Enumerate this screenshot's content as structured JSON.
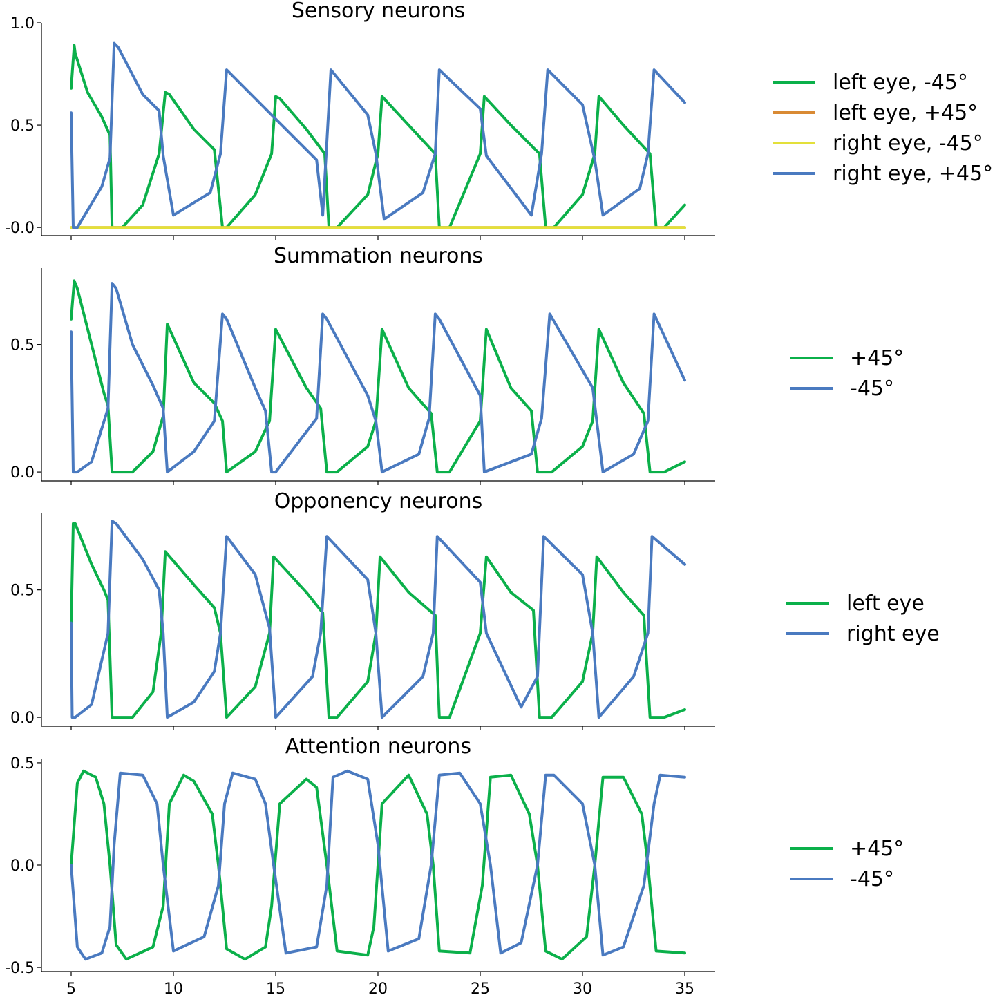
{
  "colors": {
    "green": "#0bb04a",
    "orange": "#d98a34",
    "yellow": "#e3e03a",
    "blue": "#4a7ac0"
  },
  "chart_data": [
    {
      "type": "line",
      "title": "Sensory neurons",
      "xlim": [
        5,
        35
      ],
      "ylim": [
        -0.04,
        1.0
      ],
      "yticks": [
        1.0,
        0.5,
        -0.0
      ],
      "ytick_labels": [
        "1.0",
        "0.5",
        "-0.0"
      ],
      "xticks": [
        5,
        10,
        15,
        20,
        25,
        30,
        35
      ],
      "xtick_labels": [],
      "legend": "right",
      "series": [
        {
          "name": "left eye, -45°",
          "color": "#0bb04a",
          "x": [
            5.0,
            5.15,
            5.2,
            5.8,
            6.5,
            6.9,
            7.0,
            7.5,
            8.5,
            9.3,
            9.6,
            9.8,
            11.0,
            12.0,
            12.4,
            12.6,
            14.0,
            14.8,
            15.0,
            15.2,
            16.5,
            17.4,
            17.6,
            18.0,
            19.5,
            20.0,
            20.2,
            21.5,
            22.8,
            23.0,
            23.5,
            25.0,
            25.2,
            26.5,
            27.9,
            28.2,
            28.6,
            30.0,
            30.6,
            30.8,
            32.0,
            33.3,
            33.6,
            34.0,
            35.0
          ],
          "y": [
            0.68,
            0.89,
            0.85,
            0.66,
            0.54,
            0.45,
            0.0,
            0.0,
            0.11,
            0.36,
            0.66,
            0.65,
            0.48,
            0.38,
            0.0,
            0.0,
            0.16,
            0.36,
            0.64,
            0.63,
            0.48,
            0.36,
            0.0,
            0.0,
            0.16,
            0.36,
            0.64,
            0.5,
            0.36,
            0.0,
            0.0,
            0.36,
            0.64,
            0.5,
            0.36,
            0.0,
            0.0,
            0.16,
            0.36,
            0.64,
            0.5,
            0.36,
            0.0,
            0.0,
            0.11
          ]
        },
        {
          "name": "left eye, +45°",
          "color": "#d98a34",
          "x": [
            5,
            35
          ],
          "y": [
            0.0,
            0.0
          ]
        },
        {
          "name": "right eye, -45°",
          "color": "#e3e03a",
          "x": [
            5,
            35
          ],
          "y": [
            0.0,
            0.0
          ]
        },
        {
          "name": "right eye, +45°",
          "color": "#4a7ac0",
          "x": [
            5.0,
            5.1,
            5.3,
            6.5,
            6.9,
            7.1,
            7.3,
            8.5,
            9.3,
            9.5,
            10.0,
            11.8,
            12.3,
            12.6,
            14.5,
            17.0,
            17.3,
            17.7,
            19.5,
            19.9,
            20.3,
            22.2,
            22.8,
            23.0,
            25.0,
            25.3,
            27.5,
            28.0,
            28.3,
            30.0,
            30.6,
            31.0,
            32.8,
            33.2,
            33.5,
            35.0
          ],
          "y": [
            0.56,
            0.0,
            0.0,
            0.2,
            0.34,
            0.9,
            0.88,
            0.65,
            0.57,
            0.35,
            0.06,
            0.17,
            0.36,
            0.77,
            0.58,
            0.33,
            0.06,
            0.77,
            0.55,
            0.36,
            0.04,
            0.17,
            0.36,
            0.77,
            0.58,
            0.35,
            0.06,
            0.36,
            0.77,
            0.6,
            0.33,
            0.06,
            0.19,
            0.36,
            0.77,
            0.61
          ]
        }
      ]
    },
    {
      "type": "line",
      "title": "Summation neurons",
      "xlim": [
        5,
        35
      ],
      "ylim": [
        -0.035,
        0.8
      ],
      "yticks": [
        0.5,
        0.0
      ],
      "ytick_labels": [
        "0.5",
        "0.0"
      ],
      "xticks": [
        5,
        10,
        15,
        20,
        25,
        30,
        35
      ],
      "xtick_labels": [],
      "legend": "right",
      "series": [
        {
          "name": "+45°",
          "color": "#0bb04a",
          "x": [
            5.0,
            5.15,
            5.3,
            6.0,
            6.6,
            6.8,
            7.0,
            8.0,
            9.0,
            9.5,
            9.7,
            11.0,
            12.0,
            12.4,
            12.6,
            14.0,
            14.7,
            15.0,
            16.5,
            17.2,
            17.5,
            18.0,
            19.5,
            19.9,
            20.2,
            21.5,
            22.6,
            22.9,
            23.5,
            25.0,
            25.3,
            26.5,
            27.5,
            27.8,
            28.5,
            30.0,
            30.5,
            30.8,
            32.0,
            33.0,
            33.3,
            34.0,
            35.0
          ],
          "y": [
            0.6,
            0.75,
            0.72,
            0.5,
            0.31,
            0.26,
            0.0,
            0.0,
            0.08,
            0.22,
            0.58,
            0.35,
            0.27,
            0.2,
            0.0,
            0.08,
            0.2,
            0.56,
            0.33,
            0.25,
            0.0,
            0.0,
            0.1,
            0.2,
            0.56,
            0.33,
            0.23,
            0.0,
            0.0,
            0.2,
            0.56,
            0.33,
            0.24,
            0.0,
            0.0,
            0.1,
            0.2,
            0.56,
            0.35,
            0.23,
            0.0,
            0.0,
            0.04
          ]
        },
        {
          "name": "-45°",
          "color": "#4a7ac0",
          "x": [
            5.0,
            5.1,
            5.3,
            6.0,
            6.8,
            7.0,
            7.2,
            8.0,
            9.0,
            9.5,
            9.7,
            11.0,
            12.0,
            12.4,
            12.6,
            14.0,
            14.5,
            14.8,
            15.0,
            17.0,
            17.3,
            17.5,
            19.5,
            19.9,
            20.2,
            22.0,
            22.5,
            22.8,
            23.0,
            25.0,
            25.2,
            27.5,
            28.0,
            28.4,
            30.5,
            31.0,
            32.5,
            33.2,
            33.5,
            35.0
          ],
          "y": [
            0.55,
            0.0,
            0.0,
            0.04,
            0.25,
            0.74,
            0.72,
            0.5,
            0.34,
            0.25,
            0.0,
            0.08,
            0.2,
            0.62,
            0.6,
            0.33,
            0.24,
            0.0,
            0.0,
            0.21,
            0.62,
            0.6,
            0.3,
            0.2,
            0.0,
            0.07,
            0.21,
            0.62,
            0.6,
            0.3,
            0.0,
            0.07,
            0.21,
            0.62,
            0.33,
            0.0,
            0.07,
            0.2,
            0.62,
            0.36
          ]
        }
      ]
    },
    {
      "type": "line",
      "title": "Opponency neurons",
      "xlim": [
        5,
        35
      ],
      "ylim": [
        -0.035,
        0.8
      ],
      "yticks": [
        0.5,
        0.0
      ],
      "ytick_labels": [
        "0.5",
        "0.0"
      ],
      "xticks": [
        5,
        10,
        15,
        20,
        25,
        30,
        35
      ],
      "xtick_labels": [],
      "legend": "right",
      "series": [
        {
          "name": "left eye",
          "color": "#0bb04a",
          "x": [
            5.0,
            5.1,
            5.2,
            6.0,
            6.6,
            6.8,
            7.0,
            8.0,
            9.0,
            9.4,
            9.6,
            11.0,
            12.0,
            12.3,
            12.6,
            14.0,
            14.7,
            14.9,
            16.5,
            17.3,
            17.6,
            18.0,
            19.5,
            19.9,
            20.1,
            21.5,
            22.8,
            23.0,
            23.5,
            25.0,
            25.3,
            26.5,
            27.6,
            27.9,
            28.5,
            30.0,
            30.5,
            30.7,
            32.0,
            33.0,
            33.3,
            34.0,
            35.0
          ],
          "y": [
            0.36,
            0.76,
            0.76,
            0.6,
            0.5,
            0.46,
            0.0,
            0.0,
            0.1,
            0.33,
            0.65,
            0.52,
            0.43,
            0.33,
            0.0,
            0.12,
            0.33,
            0.63,
            0.49,
            0.41,
            0.0,
            0.0,
            0.14,
            0.33,
            0.63,
            0.49,
            0.4,
            0.0,
            0.0,
            0.33,
            0.63,
            0.49,
            0.42,
            0.0,
            0.0,
            0.14,
            0.33,
            0.63,
            0.49,
            0.4,
            0.0,
            0.0,
            0.03
          ]
        },
        {
          "name": "right eye",
          "color": "#4a7ac0",
          "x": [
            5.0,
            5.05,
            5.2,
            6.0,
            6.8,
            7.0,
            7.2,
            8.5,
            9.3,
            9.5,
            9.7,
            11.0,
            12.0,
            12.3,
            12.6,
            14.0,
            14.7,
            15.0,
            16.8,
            17.2,
            17.5,
            19.5,
            19.9,
            20.2,
            22.2,
            22.7,
            22.9,
            25.0,
            25.3,
            27.0,
            27.8,
            28.1,
            30.0,
            30.5,
            30.8,
            32.5,
            33.2,
            33.4,
            35.0
          ],
          "y": [
            0.37,
            0.0,
            0.0,
            0.05,
            0.33,
            0.77,
            0.76,
            0.62,
            0.5,
            0.33,
            0.0,
            0.06,
            0.18,
            0.33,
            0.71,
            0.56,
            0.35,
            0.0,
            0.16,
            0.33,
            0.71,
            0.54,
            0.33,
            0.0,
            0.16,
            0.33,
            0.71,
            0.53,
            0.33,
            0.04,
            0.16,
            0.71,
            0.56,
            0.33,
            0.0,
            0.16,
            0.33,
            0.71,
            0.6
          ]
        }
      ]
    },
    {
      "type": "line",
      "title": "Attention neurons",
      "xlim": [
        5,
        35
      ],
      "ylim": [
        -0.52,
        0.52
      ],
      "yticks": [
        0.5,
        0.0,
        -0.5
      ],
      "ytick_labels": [
        "0.5",
        "0.0",
        "-0.5"
      ],
      "xticks": [
        5,
        10,
        15,
        20,
        25,
        30,
        35
      ],
      "xtick_labels": [
        "5",
        "10",
        "15",
        "20",
        "25",
        "30",
        "35"
      ],
      "legend": "right",
      "series": [
        {
          "name": "+45°",
          "color": "#0bb04a",
          "x": [
            5.0,
            5.3,
            5.6,
            6.2,
            6.6,
            6.9,
            7.2,
            7.7,
            9.0,
            9.5,
            9.8,
            10.5,
            11.0,
            11.9,
            12.2,
            12.6,
            13.5,
            14.5,
            14.8,
            15.2,
            16.5,
            17.0,
            17.5,
            18.0,
            19.5,
            19.8,
            20.2,
            21.5,
            22.4,
            22.7,
            23.0,
            24.5,
            25.1,
            25.5,
            26.5,
            27.4,
            27.8,
            28.2,
            29.0,
            30.2,
            30.6,
            31.0,
            32.0,
            32.9,
            33.2,
            33.6,
            35.0
          ],
          "y": [
            0.0,
            0.4,
            0.46,
            0.43,
            0.3,
            0.0,
            -0.39,
            -0.46,
            -0.4,
            -0.2,
            0.3,
            0.44,
            0.41,
            0.25,
            0.0,
            -0.41,
            -0.46,
            -0.4,
            -0.2,
            0.3,
            0.42,
            0.38,
            0.0,
            -0.42,
            -0.44,
            -0.3,
            0.3,
            0.44,
            0.25,
            0.0,
            -0.42,
            -0.43,
            -0.1,
            0.43,
            0.44,
            0.25,
            0.0,
            -0.42,
            -0.46,
            -0.35,
            0.0,
            0.43,
            0.43,
            0.25,
            0.0,
            -0.42,
            -0.43
          ]
        },
        {
          "name": "-45°",
          "color": "#4a7ac0",
          "x": [
            5.0,
            5.3,
            5.7,
            6.5,
            6.9,
            7.1,
            7.4,
            8.5,
            9.2,
            9.5,
            10.0,
            11.5,
            12.2,
            12.5,
            12.9,
            14.0,
            14.5,
            14.9,
            15.5,
            17.0,
            17.5,
            17.8,
            18.5,
            19.5,
            20.0,
            20.5,
            22.0,
            22.6,
            23.0,
            24.0,
            25.0,
            25.5,
            26.0,
            27.0,
            27.8,
            28.2,
            28.6,
            30.0,
            30.6,
            31.0,
            32.0,
            33.0,
            33.5,
            33.8,
            35.0
          ],
          "y": [
            0.0,
            -0.4,
            -0.46,
            -0.43,
            -0.3,
            0.1,
            0.45,
            0.44,
            0.3,
            0.0,
            -0.42,
            -0.35,
            -0.1,
            0.3,
            0.45,
            0.42,
            0.3,
            0.0,
            -0.43,
            -0.4,
            -0.1,
            0.43,
            0.46,
            0.42,
            0.1,
            -0.42,
            -0.36,
            0.0,
            0.44,
            0.45,
            0.3,
            0.0,
            -0.43,
            -0.38,
            0.0,
            0.44,
            0.44,
            0.3,
            0.0,
            -0.44,
            -0.4,
            -0.1,
            0.3,
            0.44,
            0.43
          ]
        }
      ]
    }
  ]
}
